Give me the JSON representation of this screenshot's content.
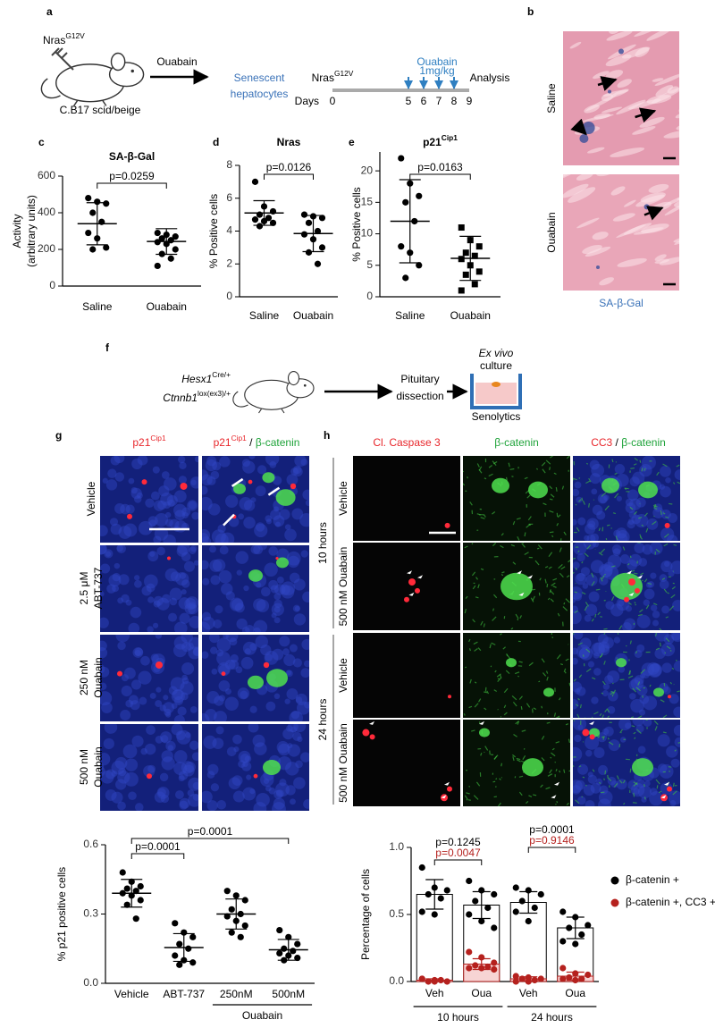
{
  "panel_labels": [
    "a",
    "b",
    "c",
    "d",
    "e",
    "f",
    "g",
    "h"
  ],
  "a": {
    "gene": "Nras",
    "allele": "G12V",
    "strain": "C.B17 scid/beige",
    "treatment": "Ouabain",
    "outcome": [
      "Senescent",
      "hepatocytes"
    ],
    "outcome_color": "#3a72b8",
    "timeline": {
      "gene": "Nras",
      "allele": "G12V",
      "treatment": "Ouabain",
      "dose": "1mg/kg",
      "dose_color": "#2f7fc1",
      "axis_label": "Days",
      "days": [
        0,
        5,
        6,
        7,
        8,
        9
      ],
      "dose_days": [
        5,
        6,
        7,
        8
      ],
      "end": "Analysis"
    }
  },
  "b": {
    "rows": [
      "Saline",
      "Ouabain"
    ],
    "stain": "SA-β-Gal",
    "stain_color": "#3a72b8"
  },
  "f": {
    "genotype": [
      {
        "gene": "Hesx1",
        "allele": "Cre/+"
      },
      {
        "gene": "Ctnnb1",
        "allele": "lox(ex3)/+"
      }
    ],
    "step": [
      "Pituitary",
      "dissection"
    ],
    "culture": [
      "Ex vivo",
      "culture"
    ],
    "treatment": "Senolytics"
  },
  "g": {
    "headers": [
      [
        {
          "text": "p21",
          "color": "#e8262b"
        },
        {
          "text": "Cip1",
          "sup": true,
          "color": "#e8262b"
        }
      ],
      [
        {
          "text": "p21",
          "color": "#e8262b"
        },
        {
          "text": "Cip1",
          "sup": true,
          "color": "#e8262b"
        },
        {
          "text": " / ",
          "color": "#000000"
        },
        {
          "text": "β-catenin",
          "color": "#1fa33a"
        }
      ]
    ],
    "rows": [
      [
        "Vehicle"
      ],
      [
        "2.5 μM",
        "ABT-737"
      ],
      [
        "250 nM",
        "Ouabain"
      ],
      [
        "500 nM",
        "Ouabain"
      ]
    ]
  },
  "h": {
    "headers": [
      [
        {
          "text": "Cl. Caspase 3",
          "color": "#e8262b"
        }
      ],
      [
        {
          "text": "β-catenin",
          "color": "#1fa33a"
        }
      ],
      [
        {
          "text": "CC3",
          "color": "#e8262b"
        },
        {
          "text": " / ",
          "color": "#000000"
        },
        {
          "text": "β-catenin",
          "color": "#1fa33a"
        }
      ]
    ],
    "groups": [
      "10 hours",
      "24 hours"
    ],
    "rows": [
      "Vehicle",
      "500 nM Ouabain",
      "Vehicle",
      "500 nM Ouabain"
    ]
  },
  "chart_data": [
    {
      "type": "dot",
      "title": "SA-β-Gal",
      "ylabel": [
        "Activity",
        "(arbitrary units)"
      ],
      "categories": [
        "Saline",
        "Ouabain"
      ],
      "values": [
        [
          480,
          460,
          450,
          400,
          350,
          290,
          260,
          210,
          200
        ],
        [
          290,
          280,
          270,
          260,
          250,
          240,
          230,
          200,
          175,
          150,
          110
        ]
      ],
      "means": [
        340,
        243
      ],
      "sds": [
        115,
        70
      ],
      "markers": [
        "circle",
        "circle"
      ],
      "color": "#000000",
      "ylim": [
        0,
        600
      ],
      "yticks": [
        0,
        200,
        400,
        600
      ],
      "comparisons": [
        {
          "pair": [
            0,
            1
          ],
          "label": "p=0.0259"
        }
      ]
    },
    {
      "type": "dot",
      "title": "Nras",
      "ylabel": [
        "% Positive cells"
      ],
      "categories": [
        "Saline",
        "Ouabain"
      ],
      "values": [
        [
          7.0,
          5.5,
          5.2,
          5.0,
          4.8,
          4.7,
          4.6,
          4.5,
          4.3
        ],
        [
          5.0,
          4.9,
          4.8,
          4.5,
          4.0,
          3.8,
          3.5,
          3.0,
          2.7,
          2.0
        ]
      ],
      "means": [
        5.1,
        3.85
      ],
      "sds": [
        0.75,
        1.1
      ],
      "markers": [
        "circle",
        "circle"
      ],
      "color": "#000000",
      "ylim": [
        0,
        8
      ],
      "yticks": [
        0,
        2,
        4,
        6,
        8
      ],
      "comparisons": [
        {
          "pair": [
            0,
            1
          ],
          "label": "p=0.0126"
        }
      ]
    },
    {
      "type": "dot",
      "title": "p21",
      "title_sup": "Cip1",
      "ylabel": [
        "% Positive cells"
      ],
      "categories": [
        "Saline",
        "Ouabain"
      ],
      "values": [
        [
          22,
          18,
          16,
          15,
          12,
          8,
          7,
          5,
          3
        ],
        [
          11,
          9,
          8,
          7,
          6.5,
          6,
          5,
          4,
          3.5,
          2,
          1
        ]
      ],
      "means": [
        12,
        6.1
      ],
      "sds": [
        6.6,
        3.5
      ],
      "markers": [
        "circle",
        "square"
      ],
      "color": "#000000",
      "ylim": [
        0,
        23
      ],
      "yticks": [
        0,
        5,
        10,
        15,
        20
      ],
      "comparisons": [
        {
          "pair": [
            0,
            1
          ],
          "label": "p=0.0163"
        }
      ]
    },
    {
      "type": "dot",
      "ylabel": [
        "% p21 positive cells"
      ],
      "categories": [
        "Vehicle",
        "ABT-737",
        "250nM",
        "500nM"
      ],
      "values": [
        [
          0.48,
          0.44,
          0.42,
          0.41,
          0.4,
          0.39,
          0.38,
          0.36,
          0.34,
          0.28
        ],
        [
          0.26,
          0.22,
          0.2,
          0.17,
          0.15,
          0.12,
          0.1,
          0.09,
          0.08
        ],
        [
          0.4,
          0.38,
          0.36,
          0.32,
          0.3,
          0.29,
          0.27,
          0.25,
          0.22,
          0.2
        ],
        [
          0.23,
          0.2,
          0.17,
          0.15,
          0.14,
          0.13,
          0.12,
          0.11,
          0.1
        ]
      ],
      "means": [
        0.39,
        0.155,
        0.3,
        0.145
      ],
      "sds": [
        0.06,
        0.06,
        0.065,
        0.045
      ],
      "markers": [
        "circle",
        "circle",
        "circle",
        "circle"
      ],
      "color": "#000000",
      "ylim": [
        0,
        0.6
      ],
      "yticks": [
        {
          "value": 0,
          "label": "0.0"
        },
        0.3,
        0.6
      ],
      "category_groups": [
        {
          "label": "Ouabain",
          "from": 2,
          "to": 3
        }
      ],
      "comparisons": [
        {
          "pair": [
            0,
            1
          ],
          "label": "p=0.0001"
        },
        {
          "pair": [
            0,
            3
          ],
          "label": "p=0.0001"
        }
      ]
    },
    {
      "type": "dotbar",
      "ylabel": [
        "Percentage of cells"
      ],
      "categories": [
        "Veh",
        "Oua",
        "Veh",
        "Oua"
      ],
      "series": [
        {
          "name": "β-catenin +",
          "color": "#000000",
          "bar_fill": "#ffffff",
          "values": [
            [
              0.85,
              0.7,
              0.68,
              0.65,
              0.62,
              0.52,
              0.5
            ],
            [
              0.75,
              0.68,
              0.65,
              0.6,
              0.55,
              0.5,
              0.45,
              0.4
            ],
            [
              0.7,
              0.68,
              0.65,
              0.6,
              0.55,
              0.52,
              0.45
            ],
            [
              0.52,
              0.48,
              0.42,
              0.4,
              0.35,
              0.3,
              0.28
            ]
          ],
          "means": [
            0.65,
            0.57,
            0.59,
            0.4
          ],
          "sds": [
            0.11,
            0.1,
            0.08,
            0.08
          ]
        },
        {
          "name": "β-catenin +, CC3 +",
          "color": "#b5211e",
          "bar_fill": "#f7d4d4",
          "values": [
            [
              0.02,
              0.01,
              0.0,
              0.0,
              0.01,
              0.02,
              0.0
            ],
            [
              0.22,
              0.18,
              0.14,
              0.12,
              0.11,
              0.1,
              0.1,
              0.09
            ],
            [
              0.04,
              0.03,
              0.02,
              0.02,
              0.01,
              0.0,
              0.0
            ],
            [
              0.1,
              0.06,
              0.05,
              0.03,
              0.02,
              0.02,
              0.01
            ]
          ],
          "means": [
            0.01,
            0.13,
            0.02,
            0.04
          ],
          "sds": [
            0.01,
            0.04,
            0.015,
            0.03
          ]
        }
      ],
      "ylim": [
        0,
        1
      ],
      "yticks": [
        {
          "value": 0,
          "label": "0.0"
        },
        0.5,
        {
          "value": 1,
          "label": "1.0"
        }
      ],
      "category_groups": [
        {
          "label": "10 hours",
          "from": 0,
          "to": 1
        },
        {
          "label": "24 hours",
          "from": 2,
          "to": 3
        }
      ],
      "comparisons": [
        {
          "pair": [
            0,
            1
          ],
          "labels": [
            "p=0.1245",
            "p=0.0047"
          ]
        },
        {
          "pair": [
            2,
            3
          ],
          "labels": [
            "p=0.0001",
            "p=0.9146"
          ]
        }
      ]
    }
  ]
}
